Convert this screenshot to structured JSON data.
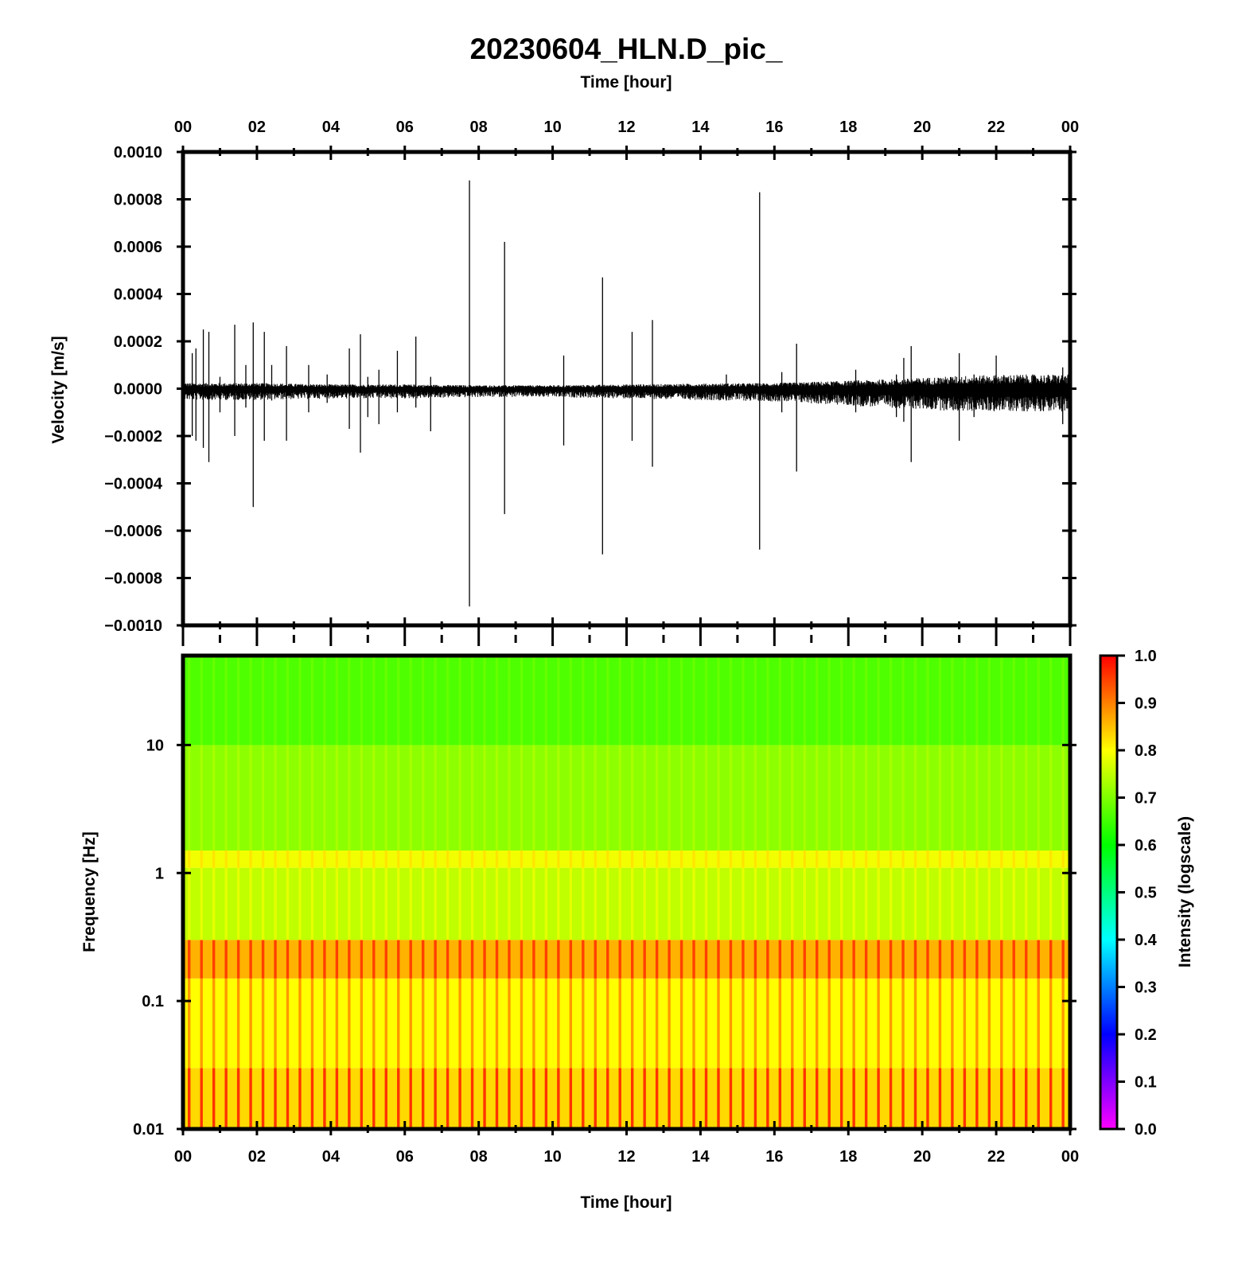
{
  "title": "20230604_HLN.D_pic_",
  "colors": {
    "frame": "#000000",
    "trace": "#000000",
    "background": "#ffffff"
  },
  "chart_data": [
    {
      "type": "line",
      "xlabel": "Time [hour]",
      "ylabel": "Velocity [m/s]",
      "xlim": [
        0,
        24
      ],
      "ylim": [
        -0.001,
        0.001
      ],
      "x_ticks": [
        "00",
        "02",
        "04",
        "06",
        "08",
        "10",
        "12",
        "14",
        "16",
        "18",
        "20",
        "22",
        "00"
      ],
      "y_ticks": [
        "0.0010",
        "0.0008",
        "0.0006",
        "0.0004",
        "0.0002",
        "0.0000",
        "−0.0002",
        "−0.0004",
        "−0.0006",
        "−0.0008",
        "−0.0010"
      ],
      "y_tick_values": [
        0.001,
        0.0008,
        0.0006,
        0.0004,
        0.0002,
        0,
        -0.0002,
        -0.0004,
        -0.0006,
        -0.0008,
        -0.001
      ],
      "noise_envelope": {
        "x": [
          0,
          2,
          4,
          6,
          8,
          10,
          12,
          14,
          16,
          18,
          19.5,
          21,
          22.5,
          24
        ],
        "upper": [
          2e-05,
          2e-05,
          1.5e-05,
          1.5e-05,
          1.2e-05,
          1.2e-05,
          1.5e-05,
          1.8e-05,
          2e-05,
          2.8e-05,
          3.5e-05,
          4.5e-05,
          5e-05,
          5e-05
        ],
        "lower": [
          -4e-05,
          -4e-05,
          -3.5e-05,
          -3.5e-05,
          -3e-05,
          -3e-05,
          -3.5e-05,
          -4e-05,
          -4.5e-05,
          -6e-05,
          -7e-05,
          -8e-05,
          -8e-05,
          -8e-05
        ]
      },
      "events": [
        {
          "x": 0.25,
          "ymax": 0.00015,
          "ymin": -0.0002
        },
        {
          "x": 0.35,
          "ymax": 0.00017,
          "ymin": -0.00022
        },
        {
          "x": 0.55,
          "ymax": 0.00025,
          "ymin": -0.00025
        },
        {
          "x": 0.7,
          "ymax": 0.00024,
          "ymin": -0.00031
        },
        {
          "x": 1.0,
          "ymax": 5e-05,
          "ymin": -0.0001
        },
        {
          "x": 1.4,
          "ymax": 0.00027,
          "ymin": -0.0002
        },
        {
          "x": 1.7,
          "ymax": 0.0001,
          "ymin": -8e-05
        },
        {
          "x": 1.9,
          "ymax": 0.00028,
          "ymin": -0.0005
        },
        {
          "x": 2.2,
          "ymax": 0.00024,
          "ymin": -0.00022
        },
        {
          "x": 2.4,
          "ymax": 0.0001,
          "ymin": -5e-05
        },
        {
          "x": 2.8,
          "ymax": 0.00018,
          "ymin": -0.00022
        },
        {
          "x": 3.4,
          "ymax": 0.0001,
          "ymin": -0.0001
        },
        {
          "x": 3.9,
          "ymax": 6e-05,
          "ymin": -6e-05
        },
        {
          "x": 4.5,
          "ymax": 0.00017,
          "ymin": -0.00017
        },
        {
          "x": 4.8,
          "ymax": 0.00023,
          "ymin": -0.00027
        },
        {
          "x": 5.0,
          "ymax": 5e-05,
          "ymin": -0.00012
        },
        {
          "x": 5.3,
          "ymax": 8e-05,
          "ymin": -0.00015
        },
        {
          "x": 5.8,
          "ymax": 0.00016,
          "ymin": -0.0001
        },
        {
          "x": 6.3,
          "ymax": 0.00022,
          "ymin": -8e-05
        },
        {
          "x": 6.7,
          "ymax": 5e-05,
          "ymin": -0.00018
        },
        {
          "x": 7.75,
          "ymax": 0.00088,
          "ymin": -0.00092
        },
        {
          "x": 8.7,
          "ymax": 0.00062,
          "ymin": -0.00053
        },
        {
          "x": 10.3,
          "ymax": 0.00014,
          "ymin": -0.00024
        },
        {
          "x": 11.35,
          "ymax": 0.00047,
          "ymin": -0.0007
        },
        {
          "x": 12.15,
          "ymax": 0.00024,
          "ymin": -0.00022
        },
        {
          "x": 12.7,
          "ymax": 0.00029,
          "ymin": -0.00033
        },
        {
          "x": 14.7,
          "ymax": 6e-05,
          "ymin": -5e-05
        },
        {
          "x": 15.6,
          "ymax": 0.00083,
          "ymin": -0.00068
        },
        {
          "x": 16.2,
          "ymax": 7e-05,
          "ymin": -0.0001
        },
        {
          "x": 16.6,
          "ymax": 0.00019,
          "ymin": -0.00035
        },
        {
          "x": 18.2,
          "ymax": 8e-05,
          "ymin": -0.0001
        },
        {
          "x": 19.3,
          "ymax": 6e-05,
          "ymin": -0.00012
        },
        {
          "x": 19.5,
          "ymax": 0.00013,
          "ymin": -0.00014
        },
        {
          "x": 19.7,
          "ymax": 0.00018,
          "ymin": -0.00031
        },
        {
          "x": 21.0,
          "ymax": 0.00015,
          "ymin": -0.00022
        },
        {
          "x": 21.4,
          "ymax": 6e-05,
          "ymin": -0.00012
        },
        {
          "x": 22.0,
          "ymax": 0.00014,
          "ymin": -8e-05
        },
        {
          "x": 23.8,
          "ymax": 9e-05,
          "ymin": -0.00015
        }
      ]
    },
    {
      "type": "heatmap",
      "xlabel": "Time [hour]",
      "ylabel": "Frequency [Hz]",
      "xlim": [
        0,
        24
      ],
      "ylim": [
        0.01,
        50
      ],
      "y_scale": "log",
      "x_ticks": [
        "00",
        "02",
        "04",
        "06",
        "08",
        "10",
        "12",
        "14",
        "16",
        "18",
        "20",
        "22",
        "00"
      ],
      "y_ticks": [
        "10",
        "1",
        "0.1",
        "0.01"
      ],
      "y_tick_values": [
        10,
        1,
        0.1,
        0.01
      ],
      "stripe_period_hours": 0.333,
      "bands": [
        {
          "f_min": 0.01,
          "f_max": 0.03,
          "intensity": 0.83,
          "stripe_peak": 0.96
        },
        {
          "f_min": 0.03,
          "f_max": 0.15,
          "intensity": 0.8,
          "stripe_peak": 0.88
        },
        {
          "f_min": 0.15,
          "f_max": 0.3,
          "intensity": 0.86,
          "stripe_peak": 0.95
        },
        {
          "f_min": 0.3,
          "f_max": 1.1,
          "intensity": 0.75,
          "stripe_peak": 0.78
        },
        {
          "f_min": 1.1,
          "f_max": 1.5,
          "intensity": 0.79,
          "stripe_peak": 0.82
        },
        {
          "f_min": 1.5,
          "f_max": 10,
          "intensity": 0.71,
          "stripe_peak": 0.73
        },
        {
          "f_min": 10,
          "f_max": 50,
          "intensity": 0.66,
          "stripe_peak": 0.68
        }
      ],
      "colorbar": {
        "label": "Intensity (logscale)",
        "range": [
          0,
          1
        ],
        "ticks": [
          "1.0",
          "0.9",
          "0.8",
          "0.7",
          "0.6",
          "0.5",
          "0.4",
          "0.3",
          "0.2",
          "0.1",
          "0.0"
        ],
        "tick_values": [
          1.0,
          0.9,
          0.8,
          0.7,
          0.6,
          0.5,
          0.4,
          0.3,
          0.2,
          0.1,
          0.0
        ],
        "colors": [
          "#ff00ff",
          "#0000ff",
          "#00ffff",
          "#00ff00",
          "#ffff00",
          "#ff0000"
        ]
      }
    }
  ]
}
